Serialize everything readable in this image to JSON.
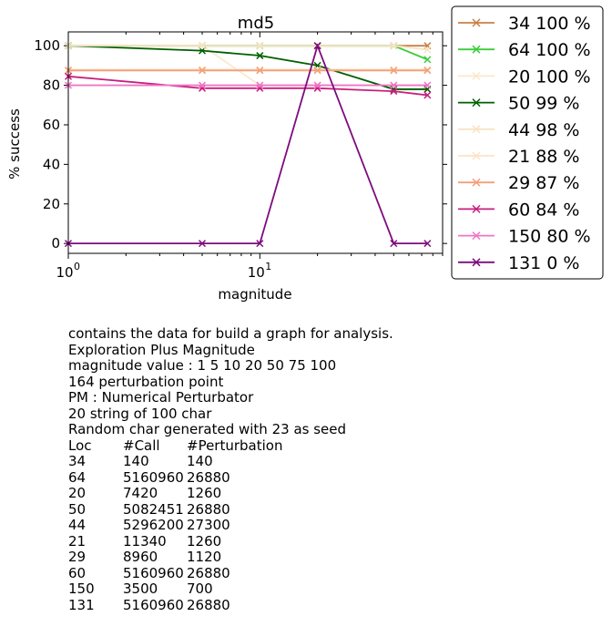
{
  "chart_data": {
    "type": "line",
    "title": "md5",
    "xlabel": "magnitude",
    "ylabel": "% success",
    "xscale": "log",
    "xlim": [
      1,
      90
    ],
    "ylim": [
      -5,
      107
    ],
    "x_ticks": [
      {
        "value": 1,
        "base": "10",
        "exp": "0"
      },
      {
        "value": 10,
        "base": "10",
        "exp": "1"
      }
    ],
    "y_ticks": [
      0,
      20,
      40,
      60,
      80,
      100
    ],
    "legend_position": "outside-right",
    "marker": "x",
    "x": [
      1,
      5,
      10,
      20,
      50,
      75
    ],
    "series": [
      {
        "name": "34 100 %",
        "color": "#c87f47",
        "values": [
          100,
          100,
          100,
          100,
          100,
          100
        ]
      },
      {
        "name": "64 100 %",
        "color": "#3acd3a",
        "values": [
          100,
          100,
          100,
          100,
          100,
          93
        ]
      },
      {
        "name": "20 100 %",
        "color": "#fbe8ce",
        "values": [
          100,
          100,
          80,
          80,
          80,
          80
        ]
      },
      {
        "name": "50 99 %",
        "color": "#005f00",
        "values": [
          100,
          97.5,
          95,
          90,
          78,
          78
        ]
      },
      {
        "name": "44 98 %",
        "color": "#f7e4c4",
        "values": [
          100,
          100,
          100,
          100,
          100,
          98
        ]
      },
      {
        "name": "21 88 %",
        "color": "#fde2c6",
        "values": [
          88,
          88,
          88,
          88,
          88,
          88
        ]
      },
      {
        "name": "29 87 %",
        "color": "#f2a07a",
        "values": [
          87.5,
          87.5,
          87.5,
          87.5,
          87.5,
          87.5
        ]
      },
      {
        "name": "60 84 %",
        "color": "#c7207c",
        "values": [
          84.5,
          78.5,
          78.5,
          78.5,
          77,
          75
        ]
      },
      {
        "name": "150 80 %",
        "color": "#ef75c6",
        "values": [
          80,
          80,
          80,
          80,
          80,
          80
        ]
      },
      {
        "name": "131 0 %",
        "color": "#7d0c7d",
        "values": [
          0,
          0,
          0,
          100,
          0,
          0
        ]
      }
    ]
  },
  "notes": {
    "lines": [
      "contains the data for build a graph for analysis.",
      "Exploration Plus Magnitude",
      "magnitude value : 1 5 10 20 50 75 100",
      "164 perturbation point",
      "PM : Numerical Perturbator",
      "20 string of 100 char",
      "Random char generated with 23 as seed"
    ],
    "table_header": [
      "Loc",
      "#Call",
      "#Perturbation"
    ],
    "table_rows": [
      [
        "34",
        "140",
        "140"
      ],
      [
        "64",
        "5160960",
        "26880"
      ],
      [
        "20",
        "7420",
        "1260"
      ],
      [
        "50",
        "5082451",
        "26880"
      ],
      [
        "44",
        "5296200",
        "27300"
      ],
      [
        "21",
        "11340",
        "1260"
      ],
      [
        "29",
        "8960",
        "1120"
      ],
      [
        "60",
        "5160960",
        "26880"
      ],
      [
        "150",
        "3500",
        "700"
      ],
      [
        "131",
        "5160960",
        "26880"
      ]
    ]
  }
}
